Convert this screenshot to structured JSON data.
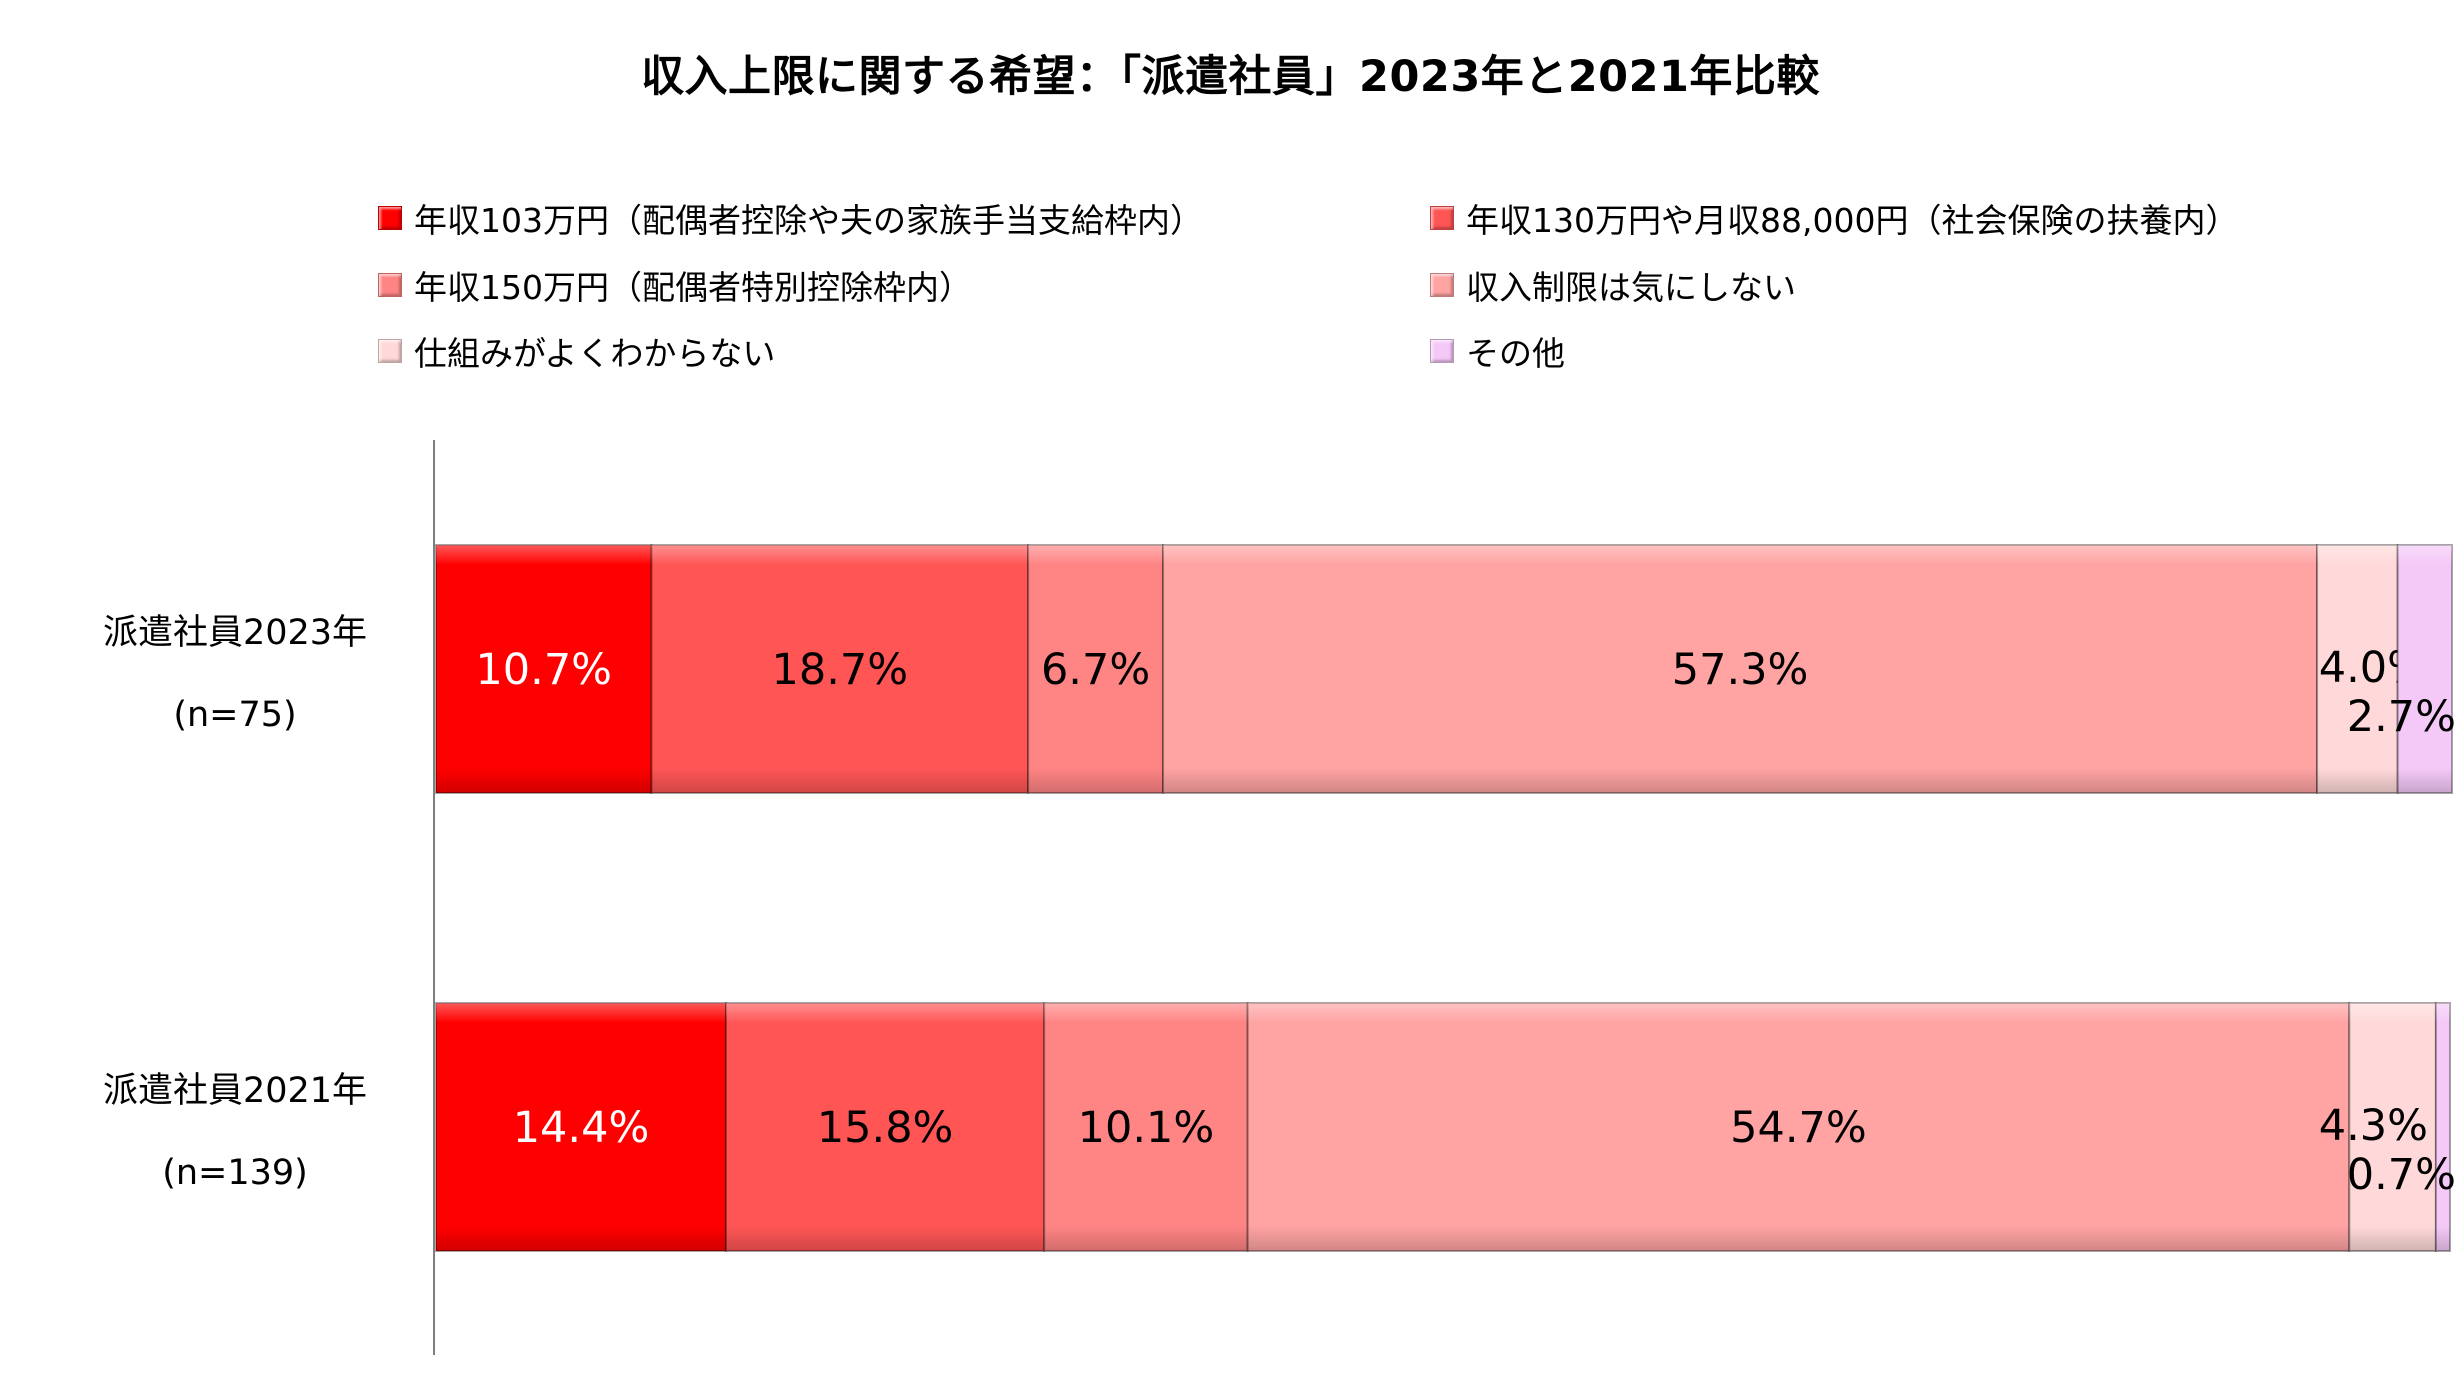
{
  "chart_data": {
    "type": "bar",
    "orientation": "horizontal",
    "stacked": true,
    "title": "収入上限に関する希望：「派遣社員」2023年と2021年比較",
    "categories": [
      {
        "name": "派遣社員2023年",
        "n": "(n=75)"
      },
      {
        "name": "派遣社員2021年",
        "n": "(n=139)"
      }
    ],
    "series": [
      {
        "name": "年収103万円（配偶者控除や夫の家族手当支給枠内）",
        "color": "#ff0000",
        "label_color": "#ffffff",
        "values": [
          10.7,
          14.4
        ]
      },
      {
        "name": "年収130万円や月収88,000円（社会保険の扶養内）",
        "color": "#ff5555",
        "label_color": "#000000",
        "values": [
          18.7,
          15.8
        ]
      },
      {
        "name": "年収150万円（配偶者特別控除枠内）",
        "color": "#ff8484",
        "label_color": "#000000",
        "values": [
          6.7,
          10.1
        ]
      },
      {
        "name": "収入制限は気にしない",
        "color": "#ffa3a3",
        "label_color": "#000000",
        "values": [
          57.3,
          54.7
        ]
      },
      {
        "name": "仕組みがよくわからない",
        "color": "#ffd9d9",
        "label_color": "#000000",
        "values": [
          4.0,
          4.3
        ]
      },
      {
        "name": "その他",
        "color": "#f4c9f7",
        "label_color": "#000000",
        "values": [
          2.7,
          0.7
        ]
      }
    ],
    "xlim": [
      0,
      100
    ],
    "value_suffix": "%",
    "legend_position": "top"
  }
}
